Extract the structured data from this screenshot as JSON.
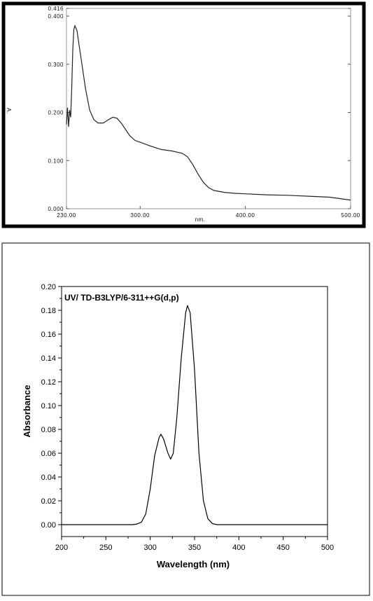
{
  "chart_data": [
    {
      "type": "line",
      "title": "",
      "xlabel": "nm.",
      "ylabel": "A.",
      "xlim": [
        230,
        500
      ],
      "ylim": [
        0,
        0.416
      ],
      "x_ticks": [
        "230.00",
        "300.00",
        "400.00",
        "500.00"
      ],
      "y_ticks": [
        "0.000",
        "0.100",
        "0.200",
        "0.300",
        "0.400",
        "0.416"
      ],
      "series": [
        {
          "x": [
            230,
            231,
            232,
            233,
            234,
            235,
            236,
            237,
            238,
            240,
            242,
            245,
            248,
            252,
            256,
            260,
            265,
            270,
            274,
            278,
            282,
            286,
            290,
            295,
            300,
            310,
            320,
            330,
            340,
            345,
            350,
            355,
            360,
            365,
            370,
            380,
            390,
            400,
            420,
            440,
            460,
            480,
            500
          ],
          "y": [
            0.175,
            0.21,
            0.17,
            0.205,
            0.19,
            0.25,
            0.33,
            0.372,
            0.38,
            0.37,
            0.34,
            0.295,
            0.25,
            0.205,
            0.185,
            0.178,
            0.178,
            0.185,
            0.19,
            0.188,
            0.178,
            0.165,
            0.152,
            0.142,
            0.138,
            0.13,
            0.123,
            0.12,
            0.115,
            0.108,
            0.092,
            0.072,
            0.055,
            0.044,
            0.038,
            0.034,
            0.032,
            0.031,
            0.029,
            0.028,
            0.026,
            0.024,
            0.018
          ]
        }
      ]
    },
    {
      "type": "line",
      "title": "",
      "annotation": "UV/ TD-B3LYP/6-311++G(d,p)",
      "xlabel": "Wavelength (nm)",
      "ylabel": "Absorbance",
      "xlim": [
        200,
        500
      ],
      "ylim": [
        -0.01,
        0.2
      ],
      "x_ticks": [
        "200",
        "250",
        "300",
        "350",
        "400",
        "450",
        "500"
      ],
      "y_ticks": [
        "0.00",
        "0.02",
        "0.04",
        "0.06",
        "0.08",
        "0.10",
        "0.12",
        "0.14",
        "0.16",
        "0.18",
        "0.20"
      ],
      "series": [
        {
          "x": [
            200,
            280,
            285,
            290,
            295,
            300,
            305,
            310,
            312,
            315,
            320,
            323,
            326,
            330,
            335,
            340,
            342,
            345,
            350,
            355,
            360,
            365,
            370,
            375,
            380,
            500
          ],
          "y": [
            0,
            0,
            0.0005,
            0.002,
            0.009,
            0.03,
            0.058,
            0.073,
            0.076,
            0.072,
            0.06,
            0.055,
            0.06,
            0.09,
            0.14,
            0.178,
            0.184,
            0.178,
            0.13,
            0.06,
            0.02,
            0.005,
            0.001,
            0,
            0,
            0
          ]
        }
      ]
    }
  ]
}
